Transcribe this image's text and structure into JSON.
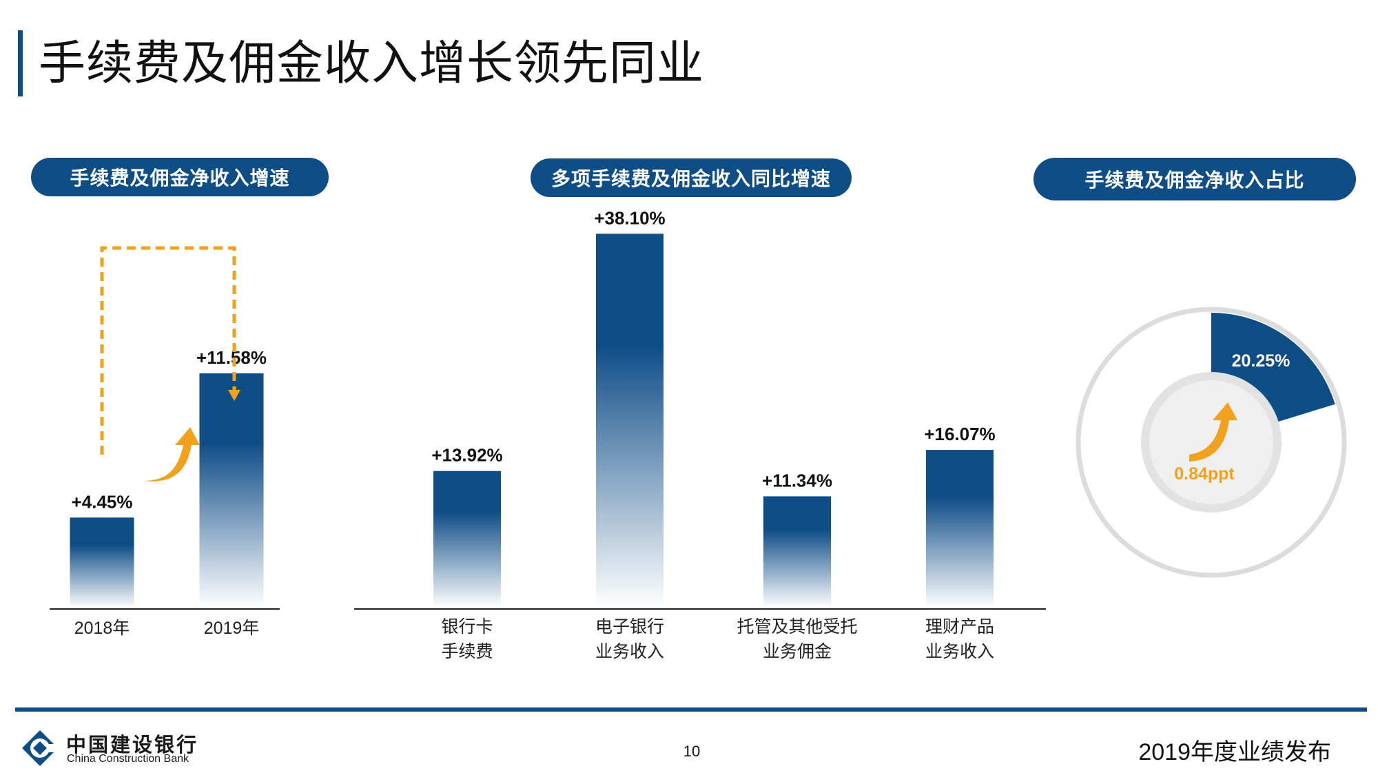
{
  "header": {
    "title": "手续费及佣金收入增长领先同业"
  },
  "colors": {
    "brand_blue": "#0f4d87",
    "accent_orange": "#f2a11d",
    "ring_gray": "#dcdcdc",
    "inner_gray": "#eeeeee"
  },
  "panels": {
    "left_label": "手续费及佣金净收入增速",
    "middle_label": "多项手续费及佣金收入同比增速",
    "right_label": "手续费及佣金净收入占比"
  },
  "chart_data": [
    {
      "type": "bar",
      "categories": [
        "2018年",
        "2019年"
      ],
      "values": [
        4.45,
        11.58
      ],
      "data_labels": [
        "+4.45%",
        "+11.58%"
      ],
      "ylim": [
        0,
        17.5
      ]
    },
    {
      "type": "bar",
      "categories": [
        [
          "银行卡",
          "手续费"
        ],
        [
          "电子银行",
          "业务收入"
        ],
        [
          "托管及其他受托",
          "业务佣金"
        ],
        [
          "理财产品",
          "业务收入"
        ]
      ],
      "values": [
        13.92,
        38.1,
        11.34,
        16.07
      ],
      "data_labels": [
        "+13.92%",
        "+38.10%",
        "+11.34%",
        "+16.07%"
      ],
      "ylim": [
        0,
        41
      ]
    },
    {
      "type": "pie",
      "slices": [
        {
          "value": 20.25,
          "label": "20.25%"
        }
      ],
      "increase": {
        "value": 0.84,
        "label": "0.84ppt"
      }
    }
  ],
  "footer": {
    "logo_cn": "中国建设银行",
    "logo_en": "China Construction Bank",
    "page_number": "10",
    "report_name": "2019年度业绩发布"
  }
}
